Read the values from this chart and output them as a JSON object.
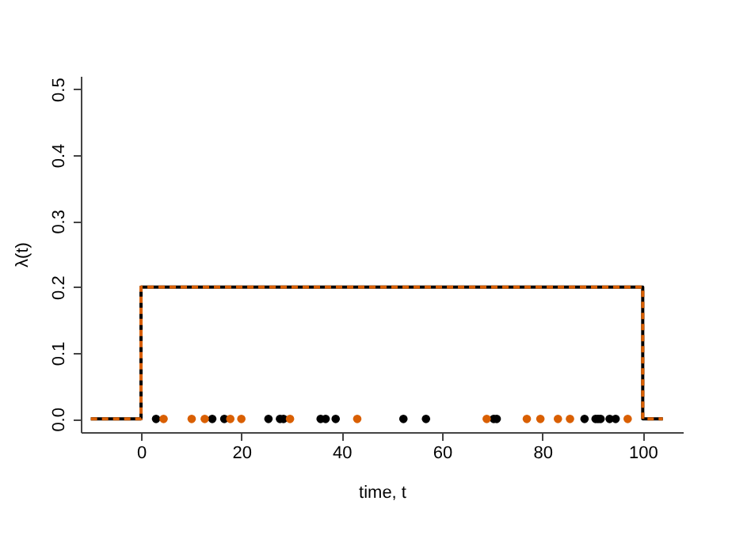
{
  "chart_data": {
    "type": "scatter",
    "xlabel": "time, t",
    "ylabel": "λ(t)",
    "xlim": [
      -12,
      108
    ],
    "ylim": [
      -0.02,
      0.52
    ],
    "xticks": [
      0,
      20,
      40,
      60,
      80,
      100
    ],
    "yticks": [
      {
        "value": 0,
        "label": "0.0"
      },
      0.1,
      0.2,
      0.3,
      0.4,
      0.5
    ],
    "grid": false,
    "series": [
      {
        "type": "step",
        "color": "#000000",
        "line_style": "solid",
        "x": [
          -10,
          0,
          100,
          104
        ],
        "values": [
          0,
          0.2,
          0,
          0
        ]
      },
      {
        "type": "step",
        "color": "#d95f02",
        "line_style": "dashed",
        "x": [
          -10,
          0,
          100,
          104
        ],
        "values": [
          0,
          0.2,
          0,
          0
        ]
      },
      {
        "color": "#000000",
        "marker": "circle",
        "x": [
          3.0,
          14.2,
          16.6,
          25.4,
          27.7,
          28.4,
          35.8,
          36.8,
          38.8,
          52.3,
          56.8,
          70.3,
          70.9,
          88.4,
          90.6,
          91.1,
          91.6,
          93.4,
          94.6
        ],
        "values": [
          0,
          0,
          0,
          0,
          0,
          0,
          0,
          0,
          0,
          0,
          0,
          0,
          0,
          0,
          0,
          0,
          0,
          0,
          0
        ]
      },
      {
        "color": "#d95f02",
        "marker": "circle",
        "x": [
          4.5,
          10.1,
          12.7,
          17.8,
          20.0,
          29.7,
          43.1,
          68.9,
          76.9,
          79.6,
          83.1,
          85.5,
          97.0
        ],
        "values": [
          0,
          0,
          0,
          0,
          0,
          0,
          0,
          0,
          0,
          0,
          0,
          0,
          0
        ]
      }
    ]
  }
}
